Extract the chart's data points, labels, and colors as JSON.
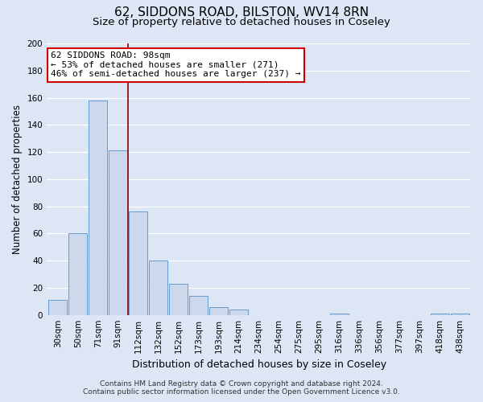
{
  "title": "62, SIDDONS ROAD, BILSTON, WV14 8RN",
  "subtitle": "Size of property relative to detached houses in Coseley",
  "xlabel": "Distribution of detached houses by size in Coseley",
  "ylabel": "Number of detached properties",
  "bar_labels": [
    "30sqm",
    "50sqm",
    "71sqm",
    "91sqm",
    "112sqm",
    "132sqm",
    "152sqm",
    "173sqm",
    "193sqm",
    "214sqm",
    "234sqm",
    "254sqm",
    "275sqm",
    "295sqm",
    "316sqm",
    "336sqm",
    "356sqm",
    "377sqm",
    "397sqm",
    "418sqm",
    "438sqm"
  ],
  "bar_values": [
    11,
    60,
    158,
    121,
    76,
    40,
    23,
    14,
    6,
    4,
    0,
    0,
    0,
    0,
    1,
    0,
    0,
    0,
    0,
    1,
    1
  ],
  "bar_color": "#ccd9ed",
  "bar_edge_color": "#6699cc",
  "grid_color": "#ffffff",
  "bg_color": "#dce6f5",
  "plot_bg_color": "#dce6f5",
  "annotation_box_text_line1": "62 SIDDONS ROAD: 98sqm",
  "annotation_box_text_line2": "← 53% of detached houses are smaller (271)",
  "annotation_box_text_line3": "46% of semi-detached houses are larger (237) →",
  "annotation_box_color": "#ffffff",
  "annotation_box_edge_color": "#cc0000",
  "vline_x": 3.5,
  "vline_color": "#8b0000",
  "ylim": [
    0,
    200
  ],
  "yticks": [
    0,
    20,
    40,
    60,
    80,
    100,
    120,
    140,
    160,
    180,
    200
  ],
  "footer_line1": "Contains HM Land Registry data © Crown copyright and database right 2024.",
  "footer_line2": "Contains public sector information licensed under the Open Government Licence v3.0.",
  "title_fontsize": 11,
  "subtitle_fontsize": 9.5,
  "tick_fontsize": 7.5,
  "xlabel_fontsize": 9,
  "ylabel_fontsize": 8.5,
  "footer_fontsize": 6.5,
  "annotation_fontsize": 8
}
